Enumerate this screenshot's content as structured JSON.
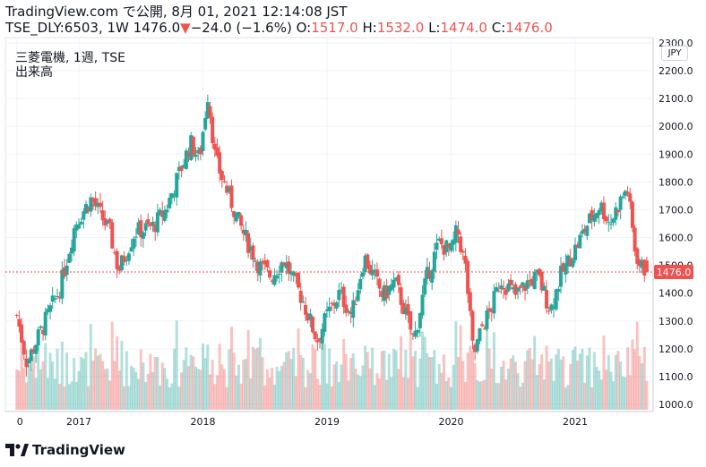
{
  "header": {
    "line1": "TradingView.com で公開, 8月 01, 2021 12:14:08 JST",
    "symbol_prefix": "TSE_DLY:6503, 1W 1476.0",
    "change_arrow": "▼",
    "change": "−24.0 (−1.6%)",
    "o_label": " O:",
    "o_value": "1517.0",
    "h_label": " H:",
    "h_value": "1532.0",
    "l_label": " L:",
    "l_value": "1474.0",
    "c_label": " C:",
    "c_value": "1476.0"
  },
  "legend": {
    "main": "三菱電機, 1週, TSE",
    "volume": "出来高"
  },
  "currency": "JPY",
  "footer": {
    "brand": "TradingView"
  },
  "colors": {
    "up": "#26a69a",
    "down": "#ef5350",
    "grid": "#f0f3fa",
    "axis_text": "#131722",
    "last_price_bg": "#ef5350"
  },
  "chart_data": {
    "type": "candlestick",
    "series_name": "三菱電機, 1週, TSE",
    "interval": "1W",
    "ylim": [
      980,
      2320
    ],
    "y_ticks": [
      "1000.0",
      "1100.0",
      "1200.0",
      "1300.0",
      "1400.0",
      "1500.0",
      "1600.0",
      "1700.0",
      "1800.0",
      "1900.0",
      "2000.0",
      "2100.0",
      "2200.0",
      "2300.0"
    ],
    "x_ticks": [
      {
        "label": "0",
        "t": 2016.5
      },
      {
        "label": "2017",
        "t": 2017.0
      },
      {
        "label": "2018",
        "t": 2018.0
      },
      {
        "label": "2019",
        "t": 2019.0
      },
      {
        "label": "2020",
        "t": 2020.0
      },
      {
        "label": "2021",
        "t": 2021.0
      }
    ],
    "last_price": "1476.0",
    "anchors": [
      {
        "t": 2016.5,
        "p": 1320
      },
      {
        "t": 2016.58,
        "p": 1150
      },
      {
        "t": 2016.7,
        "p": 1270
      },
      {
        "t": 2016.85,
        "p": 1420
      },
      {
        "t": 2016.97,
        "p": 1650
      },
      {
        "t": 2017.1,
        "p": 1740
      },
      {
        "t": 2017.25,
        "p": 1620
      },
      {
        "t": 2017.32,
        "p": 1480
      },
      {
        "t": 2017.45,
        "p": 1620
      },
      {
        "t": 2017.6,
        "p": 1640
      },
      {
        "t": 2017.7,
        "p": 1700
      },
      {
        "t": 2017.8,
        "p": 1820
      },
      {
        "t": 2017.9,
        "p": 1940
      },
      {
        "t": 2017.97,
        "p": 1880
      },
      {
        "t": 2018.04,
        "p": 2120
      },
      {
        "t": 2018.1,
        "p": 1880
      },
      {
        "t": 2018.2,
        "p": 1760
      },
      {
        "t": 2018.32,
        "p": 1620
      },
      {
        "t": 2018.45,
        "p": 1500
      },
      {
        "t": 2018.55,
        "p": 1460
      },
      {
        "t": 2018.65,
        "p": 1520
      },
      {
        "t": 2018.8,
        "p": 1380
      },
      {
        "t": 2018.92,
        "p": 1230
      },
      {
        "t": 2019.0,
        "p": 1320
      },
      {
        "t": 2019.1,
        "p": 1400
      },
      {
        "t": 2019.2,
        "p": 1320
      },
      {
        "t": 2019.3,
        "p": 1530
      },
      {
        "t": 2019.45,
        "p": 1390
      },
      {
        "t": 2019.55,
        "p": 1440
      },
      {
        "t": 2019.63,
        "p": 1330
      },
      {
        "t": 2019.7,
        "p": 1230
      },
      {
        "t": 2019.8,
        "p": 1450
      },
      {
        "t": 2019.9,
        "p": 1580
      },
      {
        "t": 2020.0,
        "p": 1550
      },
      {
        "t": 2020.05,
        "p": 1630
      },
      {
        "t": 2020.12,
        "p": 1480
      },
      {
        "t": 2020.18,
        "p": 1170
      },
      {
        "t": 2020.25,
        "p": 1280
      },
      {
        "t": 2020.32,
        "p": 1340
      },
      {
        "t": 2020.4,
        "p": 1450
      },
      {
        "t": 2020.52,
        "p": 1390
      },
      {
        "t": 2020.62,
        "p": 1440
      },
      {
        "t": 2020.7,
        "p": 1460
      },
      {
        "t": 2020.8,
        "p": 1340
      },
      {
        "t": 2020.88,
        "p": 1460
      },
      {
        "t": 2021.0,
        "p": 1560
      },
      {
        "t": 2021.1,
        "p": 1650
      },
      {
        "t": 2021.2,
        "p": 1720
      },
      {
        "t": 2021.28,
        "p": 1650
      },
      {
        "t": 2021.35,
        "p": 1720
      },
      {
        "t": 2021.42,
        "p": 1780
      },
      {
        "t": 2021.48,
        "p": 1560
      },
      {
        "t": 2021.52,
        "p": 1500
      },
      {
        "t": 2021.58,
        "p": 1476
      }
    ]
  }
}
